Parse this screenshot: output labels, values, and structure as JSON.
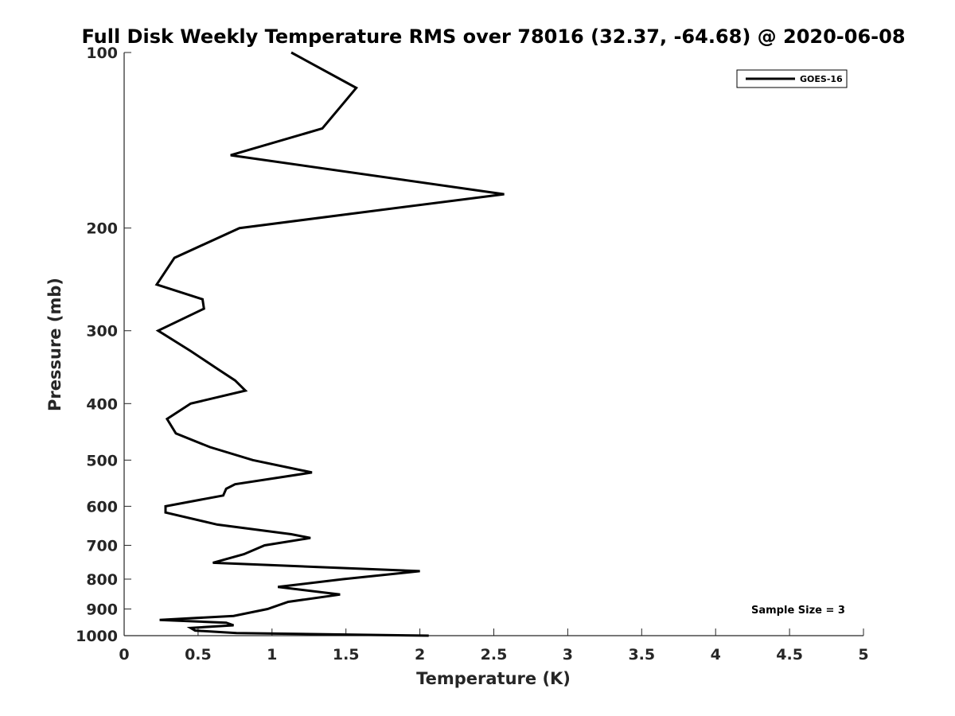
{
  "chart_data": {
    "type": "line",
    "title": "Full Disk Weekly Temperature RMS over 78016 (32.37, -64.68) @ 2020-06-08",
    "xlabel": "Temperature (K)",
    "ylabel": "Pressure (mb)",
    "xlim": [
      0,
      5
    ],
    "ylim": [
      100,
      1000
    ],
    "y_scale": "log",
    "y_reversed": true,
    "grid": false,
    "legend_position": "top-right",
    "x_ticks": [
      "0",
      "0.5",
      "1",
      "1.5",
      "2",
      "2.5",
      "3",
      "3.5",
      "4",
      "4.5",
      "5"
    ],
    "y_ticks": [
      "100",
      "200",
      "300",
      "400",
      "500",
      "600",
      "700",
      "800",
      "900",
      "1000"
    ],
    "annotation": "Sample Size = 3",
    "series": [
      {
        "name": "GOES-16",
        "color": "#000000",
        "x": [
          1.13,
          1.57,
          1.34,
          0.72,
          2.57,
          0.78,
          0.34,
          0.22,
          0.53,
          0.54,
          0.23,
          0.45,
          0.64,
          0.75,
          0.82,
          0.45,
          0.29,
          0.35,
          0.58,
          0.87,
          1.27,
          0.75,
          0.69,
          0.67,
          0.28,
          0.28,
          0.63,
          1.13,
          1.26,
          0.95,
          0.81,
          0.6,
          2.0,
          1.48,
          1.04,
          1.46,
          1.11,
          0.97,
          0.74,
          0.24,
          0.69,
          0.74,
          0.45,
          0.48,
          0.76,
          2.06
        ],
        "y": [
          100,
          115,
          135,
          150,
          175,
          200,
          225,
          250,
          265,
          275,
          300,
          325,
          350,
          365,
          380,
          400,
          425,
          450,
          475,
          500,
          525,
          550,
          560,
          575,
          600,
          615,
          645,
          670,
          680,
          700,
          725,
          750,
          775,
          800,
          825,
          850,
          875,
          900,
          925,
          940,
          950,
          960,
          970,
          980,
          990,
          1000
        ]
      }
    ]
  }
}
